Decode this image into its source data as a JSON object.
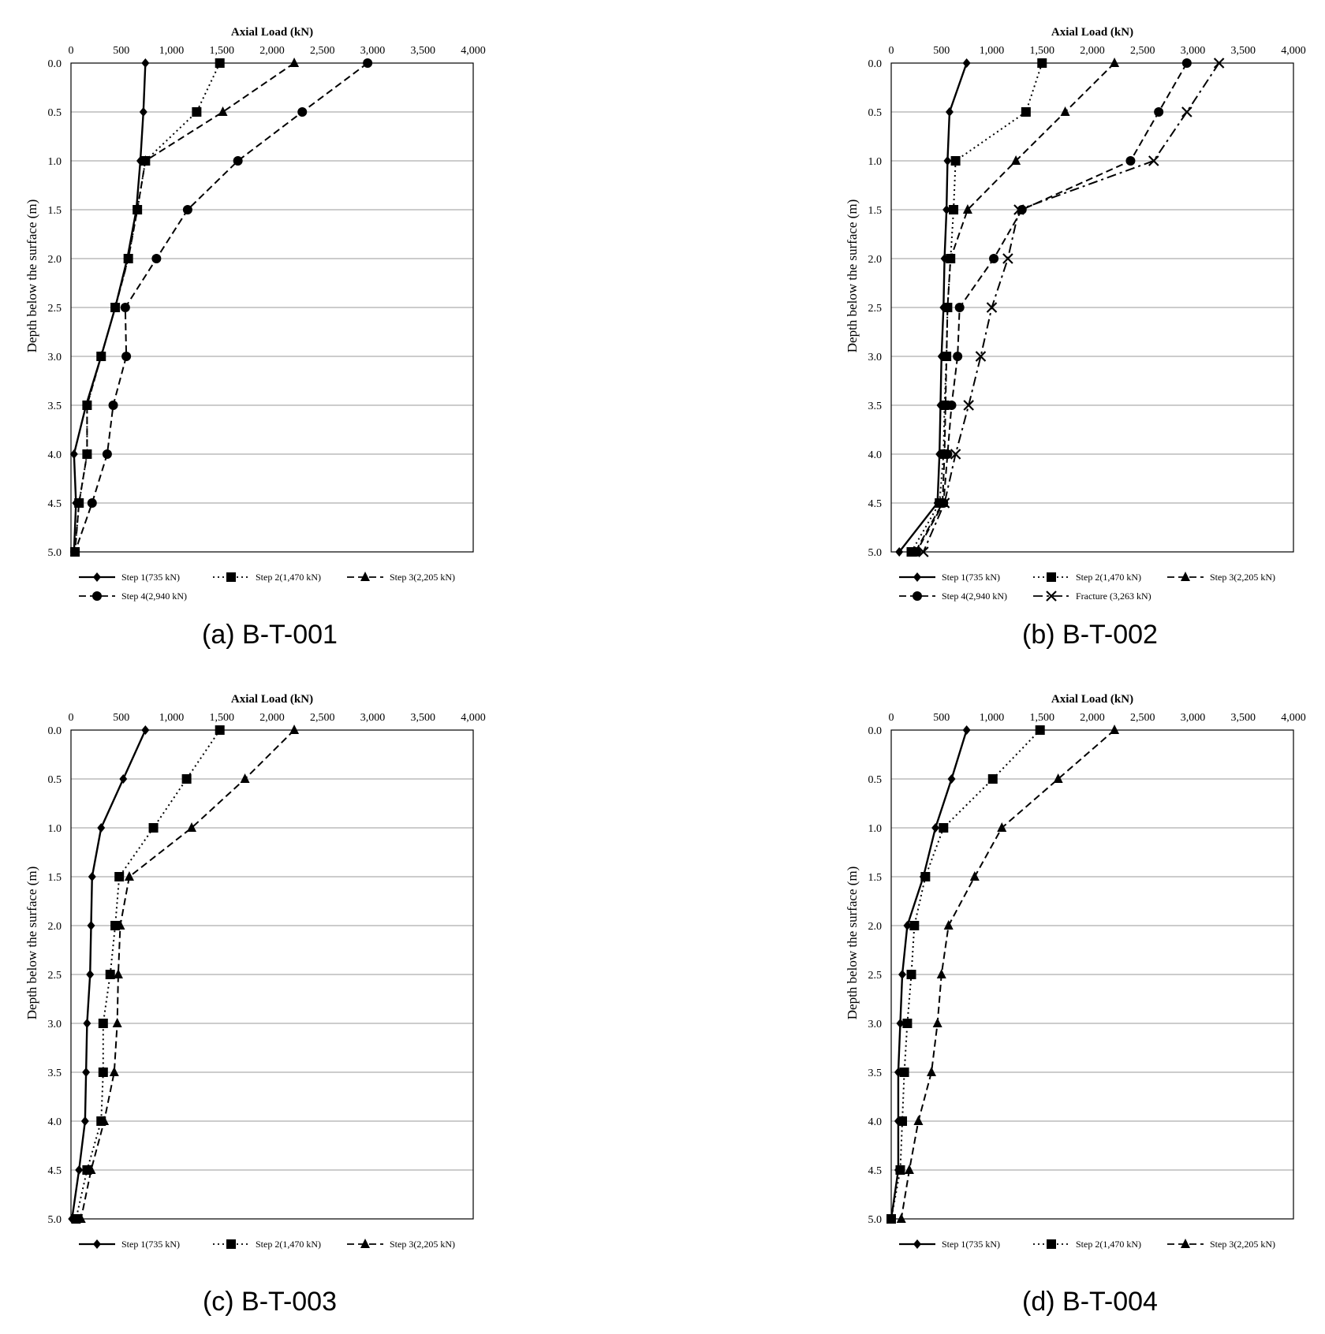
{
  "chart_data": [
    {
      "type": "line",
      "caption": "(a) B-T-001",
      "xlabel": "Axial Load (kN)",
      "ylabel": "Depth below the surface (m)",
      "xlim": [
        0,
        4000
      ],
      "ylim": [
        0,
        5
      ],
      "x_ticks": [
        "0",
        "500",
        "1,000",
        "1,500",
        "2,000",
        "2,500",
        "3,000",
        "3,500",
        "4,000"
      ],
      "y_ticks": [
        "0.0",
        "0.5",
        "1.0",
        "1.5",
        "2.0",
        "2.5",
        "3.0",
        "3.5",
        "4.0",
        "4.5",
        "5.0"
      ],
      "grid": "horizontal",
      "legend": "bottom",
      "depth": [
        0,
        0.5,
        1.0,
        1.5,
        2.0,
        2.5,
        3.0,
        3.5,
        4.0,
        4.5,
        5.0
      ],
      "series": [
        {
          "name": "Step 1(735 kN)",
          "marker": "diamond",
          "line": "solid",
          "values": [
            740,
            720,
            690,
            650,
            560,
            440,
            300,
            150,
            30,
            50,
            30
          ]
        },
        {
          "name": "Step 2(1,470 kN)",
          "marker": "square",
          "line": "dotted",
          "values": [
            1480,
            1250,
            740,
            660,
            570,
            440,
            300,
            160,
            160,
            80,
            40
          ]
        },
        {
          "name": "Step 3(2,205 kN)",
          "marker": "triangle",
          "line": "dashed",
          "values": [
            2220,
            1510,
            740,
            660,
            570,
            440,
            300,
            160,
            160,
            80,
            40
          ]
        },
        {
          "name": "Step 4(2,940 kN)",
          "marker": "circle",
          "line": "dashed",
          "values": [
            2950,
            2300,
            1660,
            1160,
            850,
            540,
            550,
            420,
            360,
            210,
            40
          ]
        }
      ]
    },
    {
      "type": "line",
      "caption": "(b) B-T-002",
      "xlabel": "Axial Load (kN)",
      "ylabel": "Depth below the surface (m)",
      "xlim": [
        0,
        4000
      ],
      "ylim": [
        0,
        5
      ],
      "x_ticks": [
        "0",
        "500",
        "1,000",
        "1,500",
        "2,000",
        "2,500",
        "3,000",
        "3,500",
        "4,000"
      ],
      "y_ticks": [
        "0.0",
        "0.5",
        "1.0",
        "1.5",
        "2.0",
        "2.5",
        "3.0",
        "3.5",
        "4.0",
        "4.5",
        "5.0"
      ],
      "grid": "horizontal",
      "legend": "bottom",
      "depth": [
        0,
        0.5,
        1.0,
        1.5,
        2.0,
        2.5,
        3.0,
        3.5,
        4.0,
        4.5,
        5.0
      ],
      "series": [
        {
          "name": "Step 1(735 kN)",
          "marker": "diamond",
          "line": "solid",
          "values": [
            750,
            580,
            560,
            550,
            530,
            520,
            500,
            490,
            480,
            460,
            80
          ]
        },
        {
          "name": "Step 2(1,470 kN)",
          "marker": "square",
          "line": "dotted",
          "values": [
            1500,
            1340,
            640,
            620,
            590,
            560,
            550,
            530,
            520,
            480,
            200
          ]
        },
        {
          "name": "Step 3(2,205 kN)",
          "marker": "triangle",
          "line": "dashed",
          "values": [
            2220,
            1730,
            1240,
            760,
            590,
            560,
            550,
            540,
            530,
            510,
            240
          ]
        },
        {
          "name": "Step 4(2,940 kN)",
          "marker": "circle",
          "line": "dashed",
          "values": [
            2940,
            2660,
            2380,
            1300,
            1020,
            680,
            660,
            600,
            560,
            520,
            250
          ]
        },
        {
          "name": "Fracture (3,263 kN)",
          "marker": "x",
          "line": "dashdot",
          "values": [
            3260,
            2940,
            2610,
            1270,
            1160,
            1000,
            890,
            770,
            640,
            530,
            320
          ]
        }
      ]
    },
    {
      "type": "line",
      "caption": "(c) B-T-003",
      "xlabel": "Axial Load (kN)",
      "ylabel": "Depth below the surface (m)",
      "xlim": [
        0,
        4000
      ],
      "ylim": [
        0,
        5
      ],
      "x_ticks": [
        "0",
        "500",
        "1,000",
        "1,500",
        "2,000",
        "2,500",
        "3,000",
        "3,500",
        "4,000"
      ],
      "y_ticks": [
        "0.0",
        "0.5",
        "1.0",
        "1.5",
        "2.0",
        "2.5",
        "3.0",
        "3.5",
        "4.0",
        "4.5",
        "5.0"
      ],
      "grid": "horizontal",
      "legend": "bottom",
      "depth": [
        0,
        0.5,
        1.0,
        1.5,
        2.0,
        2.5,
        3.0,
        3.5,
        4.0,
        4.5,
        5.0
      ],
      "series": [
        {
          "name": "Step 1(735 kN)",
          "marker": "diamond",
          "line": "solid",
          "values": [
            740,
            520,
            300,
            210,
            200,
            190,
            160,
            150,
            140,
            80,
            10
          ]
        },
        {
          "name": "Step 2(1,470 kN)",
          "marker": "square",
          "line": "dotted",
          "values": [
            1480,
            1150,
            820,
            480,
            440,
            390,
            320,
            320,
            300,
            160,
            50
          ]
        },
        {
          "name": "Step 3(2,205 kN)",
          "marker": "triangle",
          "line": "dashed",
          "values": [
            2220,
            1730,
            1200,
            580,
            490,
            470,
            460,
            430,
            330,
            200,
            100
          ]
        }
      ]
    },
    {
      "type": "line",
      "caption": "(d) B-T-004",
      "xlabel": "Axial Load (kN)",
      "ylabel": "Depth below the surface (m)",
      "xlim": [
        0,
        4000
      ],
      "ylim": [
        0,
        5
      ],
      "x_ticks": [
        "0",
        "500",
        "1,000",
        "1,500",
        "2,000",
        "2,500",
        "3,000",
        "3,500",
        "4,000"
      ],
      "y_ticks": [
        "0.0",
        "0.5",
        "1.0",
        "1.5",
        "2.0",
        "2.5",
        "3.0",
        "3.5",
        "4.0",
        "4.5",
        "5.0"
      ],
      "grid": "horizontal",
      "legend": "bottom",
      "depth": [
        0,
        0.5,
        1.0,
        1.5,
        2.0,
        2.5,
        3.0,
        3.5,
        4.0,
        4.5,
        5.0
      ],
      "series": [
        {
          "name": "Step 1(735 kN)",
          "marker": "diamond",
          "line": "solid",
          "values": [
            750,
            600,
            440,
            320,
            160,
            110,
            90,
            70,
            70,
            70,
            0
          ]
        },
        {
          "name": "Step 2(1,470 kN)",
          "marker": "square",
          "line": "dotted",
          "values": [
            1480,
            1010,
            520,
            340,
            230,
            200,
            160,
            130,
            110,
            90,
            0
          ]
        },
        {
          "name": "Step 3(2,205 kN)",
          "marker": "triangle",
          "line": "dashed",
          "values": [
            2220,
            1660,
            1100,
            830,
            570,
            500,
            460,
            400,
            270,
            180,
            100
          ]
        }
      ]
    }
  ]
}
